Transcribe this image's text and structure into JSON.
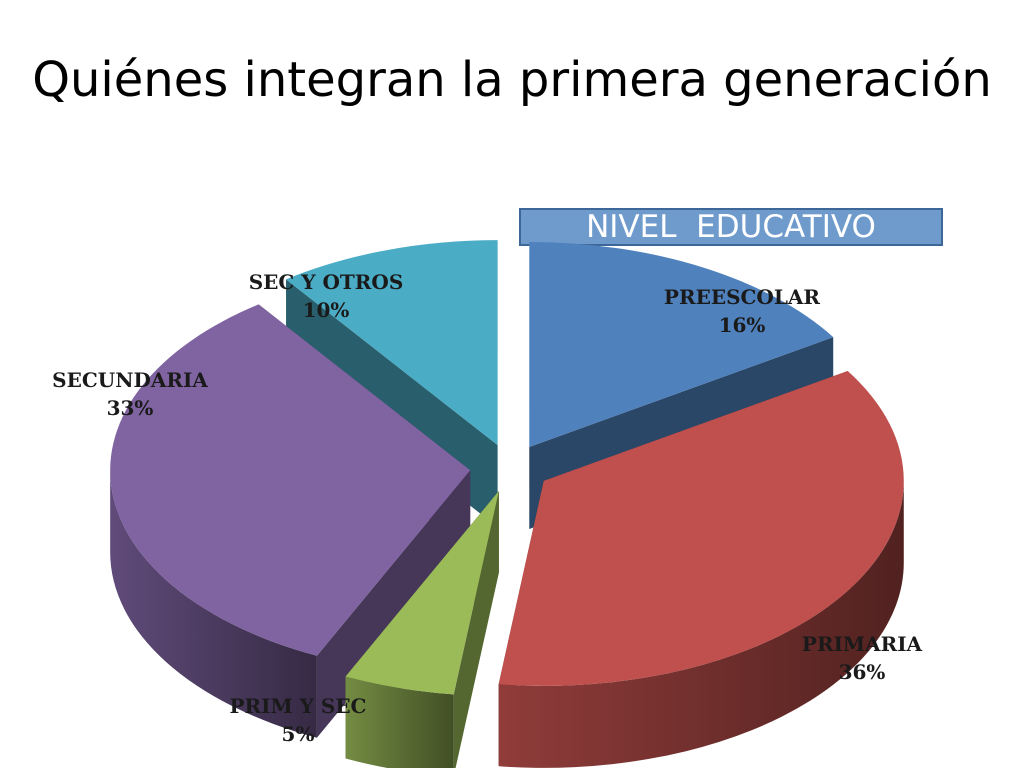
{
  "slide": {
    "title": "Quiénes integran la primera generación"
  },
  "chart_data": {
    "type": "pie",
    "style": "3d-exploded",
    "legend_title": "NIVEL  EDUCATIVO",
    "slices": [
      {
        "label": "PREESCOLAR",
        "value": 16,
        "value_label": "16%",
        "color": "#4f81bd"
      },
      {
        "label": "PRIMARIA",
        "value": 36,
        "value_label": "36%",
        "color": "#c0504d"
      },
      {
        "label": "PRIM Y SEC",
        "value": 5,
        "value_label": "5%",
        "color": "#9bbb59"
      },
      {
        "label": "SECUNDARIA",
        "value": 33,
        "value_label": "33%",
        "color": "#8064a2"
      },
      {
        "label": "SEC Y OTROS",
        "value": 10,
        "value_label": "10%",
        "color": "#4bacc6"
      }
    ]
  }
}
